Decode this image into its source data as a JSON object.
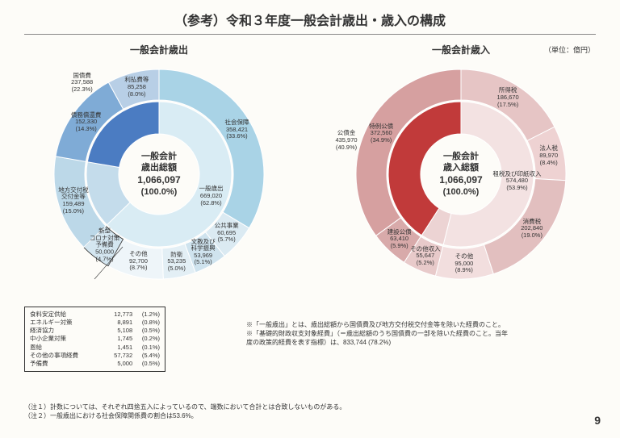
{
  "title": "（参考）令和３年度一般会計歳出・歳入の構成",
  "unit": "（単位：億円）",
  "page_number": "9",
  "center": {
    "line1_out": "一般会計",
    "line1_in": "一般会計",
    "line2_out": "歳出総額",
    "line2_in": "歳入総額",
    "amount": "1,066,097",
    "pct": "(100.0%)"
  },
  "left": {
    "subtitle": "一般会計歳出",
    "outer": [
      {
        "label": "社会保障",
        "amount": "358,421",
        "pct": "(33.6%)",
        "value": 33.6,
        "color": "#a9d3e6"
      },
      {
        "label": "公共事業",
        "amount": "60,695",
        "pct": "(5.7%)",
        "value": 5.7,
        "color": "#dbeaf2"
      },
      {
        "label": "文教及び\n科学振興",
        "amount": "53,969",
        "pct": "(5.1%)",
        "value": 5.1,
        "color": "#cfe3ee"
      },
      {
        "label": "防衛",
        "amount": "53,235",
        "pct": "(5.0%)",
        "value": 5.0,
        "color": "#e3eff5"
      },
      {
        "label": "その他",
        "amount": "92,700",
        "pct": "(8.7%)",
        "value": 8.7,
        "color": "#eef5f9"
      },
      {
        "label": "新型\nコロナ対策\n予備費",
        "amount": "50,000",
        "pct": "(4.7%)",
        "value": 4.7,
        "color": "#d4e6f0",
        "border": "#333"
      },
      {
        "label": "地方交付税\n交付金等",
        "amount": "159,489",
        "pct": "(15.0%)",
        "value": 15.0,
        "color": "#bcd8e8"
      },
      {
        "label": "債務償還費",
        "amount": "152,330",
        "pct": "(14.3%)",
        "value": 14.3,
        "color": "#7fabd6"
      },
      {
        "label": "利払費等",
        "amount": "85,258",
        "pct": "(8.0%)",
        "value": 8.0,
        "color": "#b8cfe6"
      }
    ],
    "inner": [
      {
        "label": "一般歳出",
        "amount": "669,020",
        "pct": "(62.8%)",
        "value": 62.8,
        "color": "#d9ecf4"
      },
      {
        "label": "",
        "amount": "",
        "pct": "",
        "value": 15.0,
        "color": "#c4dceb"
      },
      {
        "label": "国債費",
        "amount": "237,588",
        "pct": "(22.3%)",
        "value": 22.3,
        "color": "#4b7cc2"
      }
    ]
  },
  "right": {
    "subtitle": "一般会計歳入",
    "outer": [
      {
        "label": "所得税",
        "amount": "186,670",
        "pct": "(17.5%)",
        "value": 17.5,
        "color": "#e6c5c5"
      },
      {
        "label": "法人税",
        "amount": "89,970",
        "pct": "(8.4%)",
        "value": 8.4,
        "color": "#eed2d2"
      },
      {
        "label": "消費税",
        "amount": "202,840",
        "pct": "(19.0%)",
        "value": 19.0,
        "color": "#e2bfbf"
      },
      {
        "label": "その他",
        "amount": "95,000",
        "pct": "(8.9%)",
        "value": 8.9,
        "color": "#f2dede"
      },
      {
        "label": "その他収入",
        "amount": "55,647",
        "pct": "(5.2%)",
        "value": 5.2,
        "color": "#e8caca"
      },
      {
        "label": "建設公債",
        "amount": "63,410",
        "pct": "(5.9%)",
        "value": 5.9,
        "color": "#d8aaaa"
      },
      {
        "label": "特例公債",
        "amount": "372,560",
        "pct": "(34.9%)",
        "value": 34.9,
        "color": "#d6a0a0"
      }
    ],
    "inner": [
      {
        "label": "租税及び印紙収入",
        "amount": "574,480",
        "pct": "(53.9%)",
        "value": 53.9,
        "color": "#f3e2e2"
      },
      {
        "label": "",
        "amount": "",
        "pct": "",
        "value": 5.2,
        "color": "#ecd3d3"
      },
      {
        "label": "公債金",
        "amount": "435,970",
        "pct": "(40.9%)",
        "value": 40.9,
        "color": "#c13a3a"
      }
    ]
  },
  "breakdown_box": [
    {
      "label": "食料安定供給",
      "amount": "12,773",
      "pct": "(1.2%)"
    },
    {
      "label": "エネルギー対策",
      "amount": "8,891",
      "pct": "(0.8%)"
    },
    {
      "label": "経済協力",
      "amount": "5,108",
      "pct": "(0.5%)"
    },
    {
      "label": "中小企業対策",
      "amount": "1,745",
      "pct": "(0.2%)"
    },
    {
      "label": "恩給",
      "amount": "1,451",
      "pct": "(0.1%)"
    },
    {
      "label": "その他の事項経費",
      "amount": "57,732",
      "pct": "(5.4%)"
    },
    {
      "label": "予備費",
      "amount": "5,000",
      "pct": "(0.5%)"
    }
  ],
  "explain1": "※「一般歳出」とは、歳出総額から国債費及び地方交付税交付金等を除いた経費のこと。",
  "explain2": "※「基礎的財政収支対象経費」（＝歳出総額のうち国債費の一部を除いた経費のこと。当年度の政策的経費を表す指標）は、833,744 (78.2%)",
  "note1": "（注１）計数については、それぞれ四捨五入によっているので、端数において合計とは合致しないものがある。",
  "note2": "（注２）一般歳出における社会保障関係費の割合は53.6%。"
}
